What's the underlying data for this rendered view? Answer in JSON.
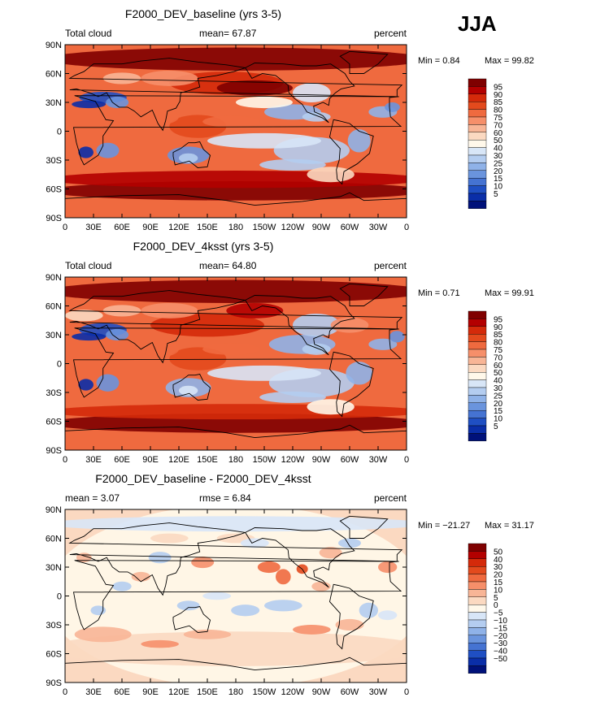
{
  "season": "JJA",
  "chart_data": [
    {
      "type": "heatmap",
      "title": "F2000_DEV_baseline (yrs 3-5)",
      "variable_label": "Total cloud",
      "mean_label": "mean=",
      "mean_value": "67.87",
      "units": "percent",
      "min_label": "Min =",
      "min_value": "0.84",
      "max_label": "Max =",
      "max_value": "99.82",
      "x_ticks": [
        "0",
        "30E",
        "60E",
        "90E",
        "120E",
        "150E",
        "180",
        "150W",
        "120W",
        "90W",
        "60W",
        "30W",
        "0"
      ],
      "y_ticks": [
        "90N",
        "60N",
        "30N",
        "0",
        "30S",
        "60S",
        "90S"
      ],
      "xlim": [
        0,
        360
      ],
      "ylim": [
        -90,
        90
      ],
      "colorbar_levels": [
        "95",
        "90",
        "85",
        "80",
        "75",
        "70",
        "60",
        "50",
        "40",
        "30",
        "25",
        "20",
        "15",
        "10",
        "5"
      ],
      "colorbar_colors": [
        "#7f0000",
        "#b30000",
        "#d42a0a",
        "#e34a1d",
        "#ef6a3f",
        "#f68f6a",
        "#f8b596",
        "#fbd9c1",
        "#fff8ea",
        "#d8e6f7",
        "#b4cdf0",
        "#8fb2e8",
        "#6a94dd",
        "#4573d2",
        "#1f4fc3",
        "#0a2ea8",
        "#00117a"
      ]
    },
    {
      "type": "heatmap",
      "title": "F2000_DEV_4ksst (yrs 3-5)",
      "variable_label": "Total cloud",
      "mean_label": "mean=",
      "mean_value": "64.80",
      "units": "percent",
      "min_label": "Min =",
      "min_value": "0.71",
      "max_label": "Max =",
      "max_value": "99.91",
      "x_ticks": [
        "0",
        "30E",
        "60E",
        "90E",
        "120E",
        "150E",
        "180",
        "150W",
        "120W",
        "90W",
        "60W",
        "30W",
        "0"
      ],
      "y_ticks": [
        "90N",
        "60N",
        "30N",
        "0",
        "30S",
        "60S",
        "90S"
      ],
      "xlim": [
        0,
        360
      ],
      "ylim": [
        -90,
        90
      ],
      "colorbar_levels": [
        "95",
        "90",
        "85",
        "80",
        "75",
        "70",
        "60",
        "50",
        "40",
        "30",
        "25",
        "20",
        "15",
        "10",
        "5"
      ],
      "colorbar_colors": [
        "#7f0000",
        "#b30000",
        "#d42a0a",
        "#e34a1d",
        "#ef6a3f",
        "#f68f6a",
        "#f8b596",
        "#fbd9c1",
        "#fff8ea",
        "#d8e6f7",
        "#b4cdf0",
        "#8fb2e8",
        "#6a94dd",
        "#4573d2",
        "#1f4fc3",
        "#0a2ea8",
        "#00117a"
      ]
    },
    {
      "type": "heatmap",
      "title": "F2000_DEV_baseline - F2000_DEV_4ksst",
      "variable_label": "",
      "mean_label": "mean =",
      "mean_value": "3.07",
      "rmse_label": "rmse =",
      "rmse_value": "6.84",
      "units": "percent",
      "min_label": "Min =",
      "min_value": "−21.27",
      "max_label": "Max =",
      "max_value": "31.17",
      "x_ticks": [
        "0",
        "30E",
        "60E",
        "90E",
        "120E",
        "150E",
        "180",
        "150W",
        "120W",
        "90W",
        "60W",
        "30W",
        "0"
      ],
      "y_ticks": [
        "90N",
        "60N",
        "30N",
        "0",
        "30S",
        "60S",
        "90S"
      ],
      "xlim": [
        0,
        360
      ],
      "ylim": [
        -90,
        90
      ],
      "colorbar_levels": [
        "50",
        "40",
        "30",
        "20",
        "15",
        "10",
        "5",
        "0",
        "−5",
        "−10",
        "−15",
        "−20",
        "−30",
        "−40",
        "−50"
      ],
      "colorbar_colors": [
        "#7f0000",
        "#b30000",
        "#d42a0a",
        "#e34a1d",
        "#ef6a3f",
        "#f68f6a",
        "#f8b596",
        "#fbd9c1",
        "#fff8ea",
        "#d8e6f7",
        "#b4cdf0",
        "#8fb2e8",
        "#6a94dd",
        "#4573d2",
        "#1f4fc3",
        "#0a2ea8",
        "#00117a"
      ]
    }
  ]
}
